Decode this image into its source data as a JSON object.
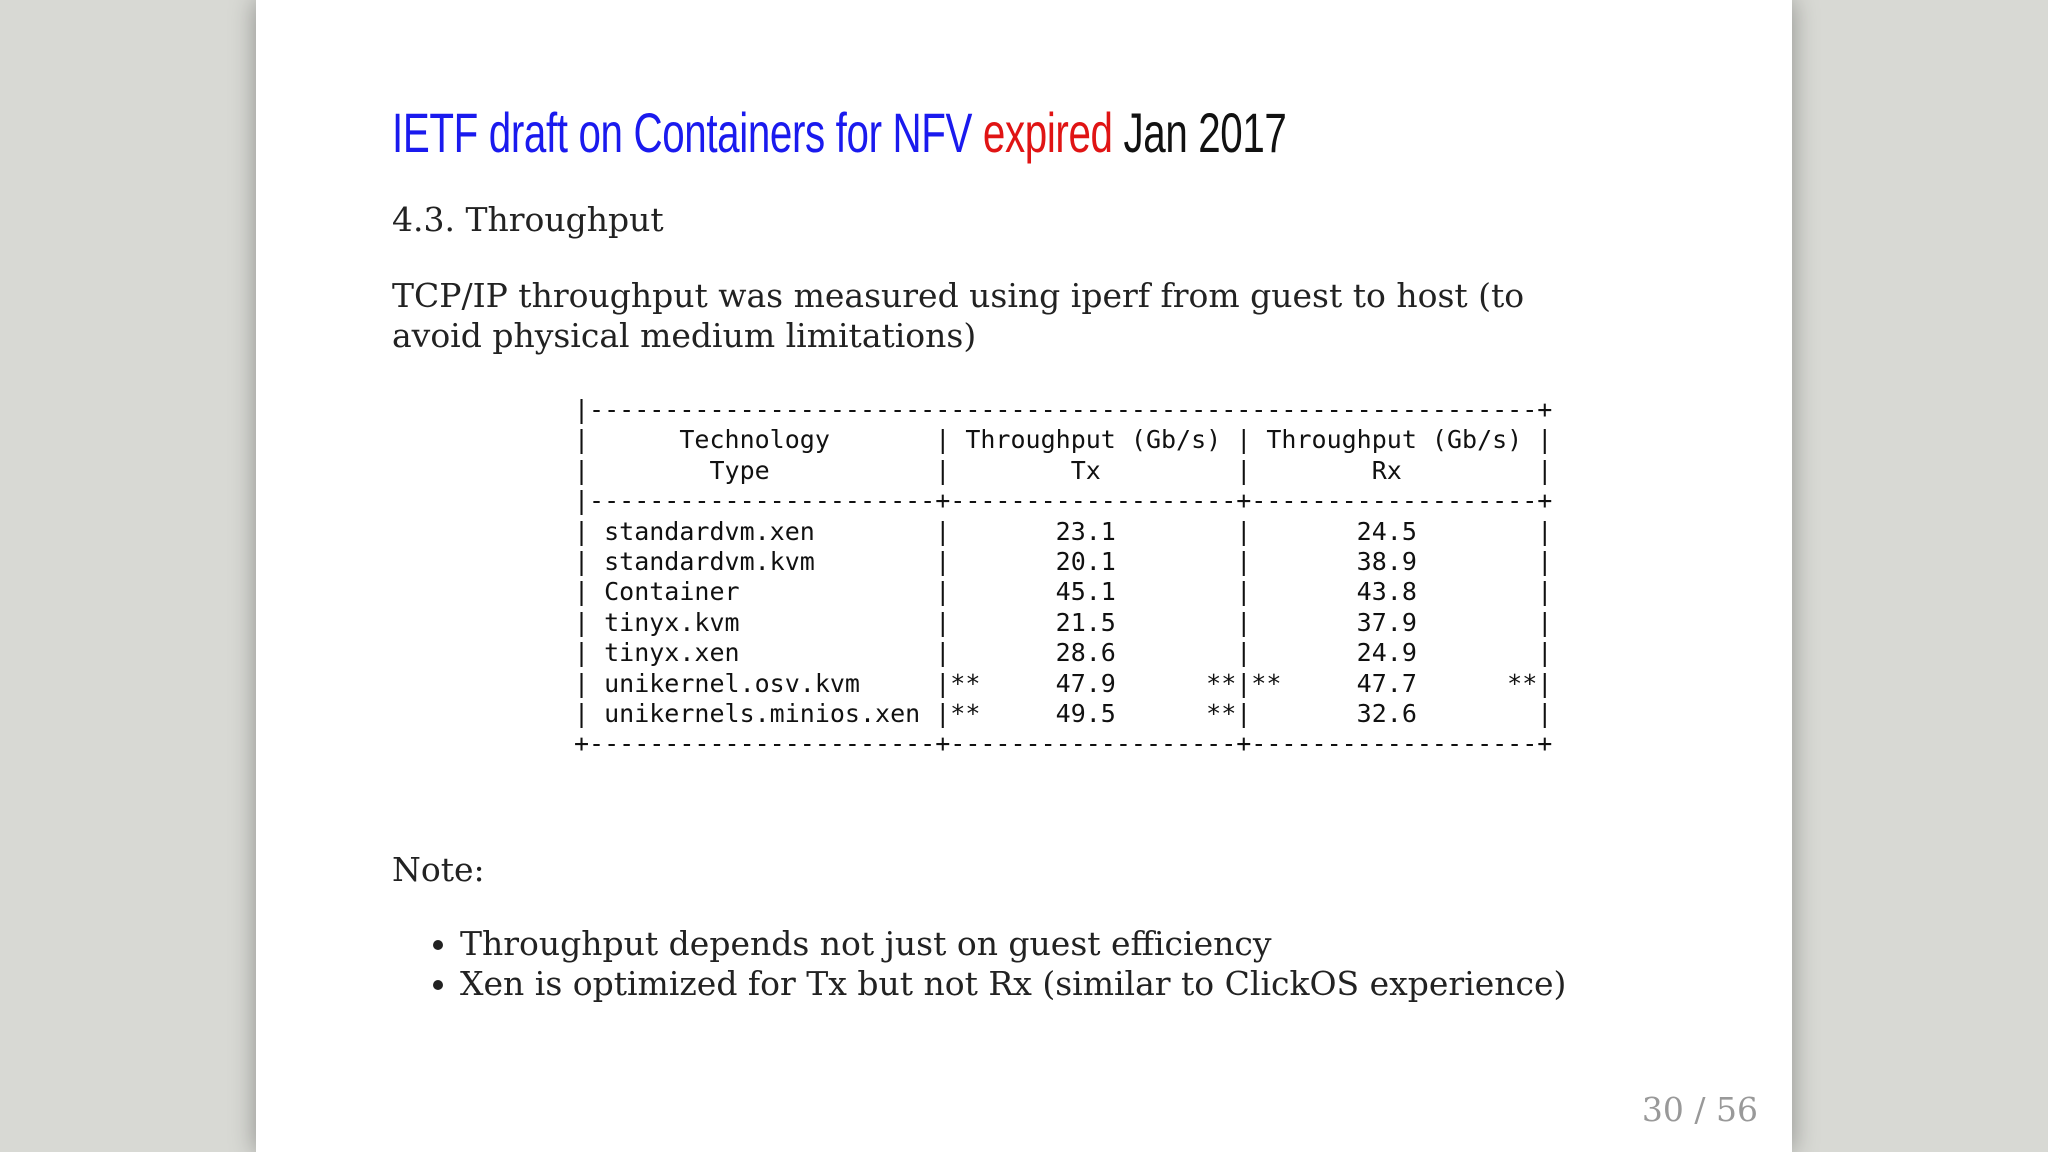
{
  "slide": {
    "title": {
      "part1": "IETF draft on Containers for NFV",
      "part2": "expired",
      "part3": "Jan 2017"
    },
    "heading": "4.3. Throughput",
    "paragraph": "TCP/IP throughput was measured using iperf from guest to host (to avoid physical medium limitations)",
    "table": {
      "lines": [
        "|---------------------------------------------------------------+",
        "|      Technology       | Throughput (Gb/s) | Throughput (Gb/s) |",
        "|        Type           |        Tx         |        Rx         |",
        "|-----------------------+-------------------+-------------------+",
        "| standardvm.xen        |       23.1        |       24.5        |",
        "| standardvm.kvm        |       20.1        |       38.9        |",
        "| Container             |       45.1        |       43.8        |",
        "| tinyx.kvm             |       21.5        |       37.9        |",
        "| tinyx.xen             |       28.6        |       24.9        |",
        "| unikernel.osv.kvm     |**     47.9      **|**     47.7      **|",
        "| unikernels.minios.xen |**     49.5      **|       32.6        |",
        "+-----------------------+-------------------+-------------------+"
      ]
    },
    "note": "Note:",
    "bullets": [
      "Throughput depends not just on guest efficiency",
      "Xen is optimized for Tx but not Rx (similar to ClickOS experience)"
    ],
    "page_number": "30 / 56"
  }
}
